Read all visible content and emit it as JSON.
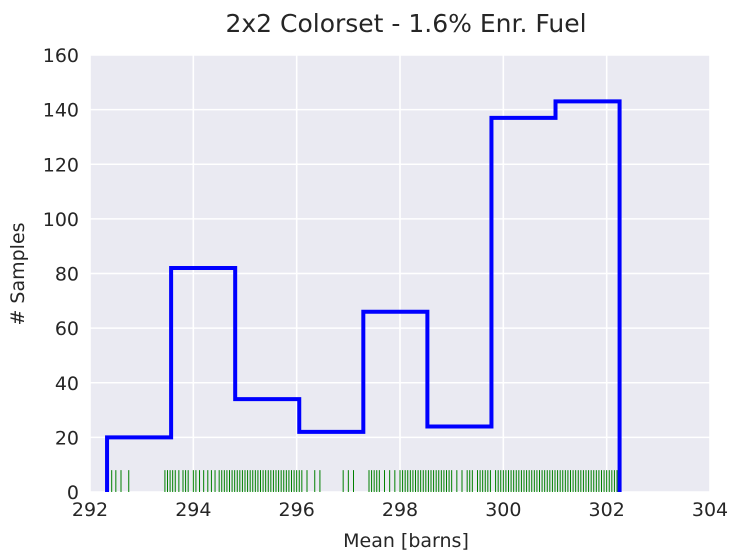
{
  "chart_data": {
    "type": "histogram",
    "title": "2x2 Colorset - 1.6% Enr. Fuel",
    "xlabel": "Mean [barns]",
    "ylabel": "# Samples",
    "xlim": [
      292,
      304
    ],
    "ylim": [
      0,
      160
    ],
    "xticks": [
      292,
      294,
      296,
      298,
      300,
      302,
      304
    ],
    "yticks": [
      0,
      20,
      40,
      60,
      80,
      100,
      120,
      140,
      160
    ],
    "grid": true,
    "colors": {
      "background": "#EAEAF2",
      "grid": "#FFFFFF",
      "histogram": "#0000FF",
      "rug": "#008000"
    },
    "bins": {
      "edges": [
        292.33,
        293.57,
        294.81,
        296.05,
        297.29,
        298.53,
        299.77,
        301.01,
        302.25
      ],
      "counts": [
        20,
        82,
        34,
        22,
        66,
        24,
        137,
        143
      ]
    },
    "rug": {
      "height": 8,
      "values": [
        292.35,
        292.42,
        292.5,
        292.6,
        292.75,
        293.45,
        293.5,
        293.55,
        293.6,
        293.65,
        293.72,
        293.8,
        293.85,
        293.9,
        294.0,
        294.05,
        294.12,
        294.2,
        294.28,
        294.35,
        294.42,
        294.5,
        294.55,
        294.6,
        294.65,
        294.7,
        294.75,
        294.8,
        294.85,
        294.9,
        294.95,
        295.0,
        295.05,
        295.1,
        295.15,
        295.2,
        295.25,
        295.3,
        295.35,
        295.4,
        295.45,
        295.5,
        295.55,
        295.6,
        295.65,
        295.7,
        295.75,
        295.8,
        295.85,
        295.9,
        295.95,
        296.0,
        296.05,
        296.1,
        296.2,
        296.35,
        296.45,
        296.9,
        297.0,
        297.1,
        297.4,
        297.45,
        297.5,
        297.55,
        297.6,
        297.7,
        297.8,
        297.9,
        298.0,
        298.05,
        298.1,
        298.15,
        298.2,
        298.25,
        298.3,
        298.35,
        298.4,
        298.45,
        298.5,
        298.55,
        298.6,
        298.65,
        298.7,
        298.75,
        298.8,
        298.85,
        298.9,
        298.95,
        299.0,
        299.1,
        299.2,
        299.3,
        299.35,
        299.4,
        299.5,
        299.55,
        299.6,
        299.65,
        299.7,
        299.75,
        299.85,
        299.9,
        299.95,
        300.0,
        300.05,
        300.1,
        300.15,
        300.2,
        300.25,
        300.3,
        300.35,
        300.4,
        300.45,
        300.5,
        300.55,
        300.6,
        300.65,
        300.7,
        300.75,
        300.8,
        300.85,
        300.9,
        300.95,
        301.0,
        301.05,
        301.1,
        301.15,
        301.2,
        301.25,
        301.3,
        301.35,
        301.4,
        301.45,
        301.5,
        301.55,
        301.6,
        301.65,
        301.7,
        301.75,
        301.8,
        301.85,
        301.9,
        301.95,
        302.0,
        302.05,
        302.1,
        302.15,
        302.2,
        302.25
      ]
    }
  }
}
